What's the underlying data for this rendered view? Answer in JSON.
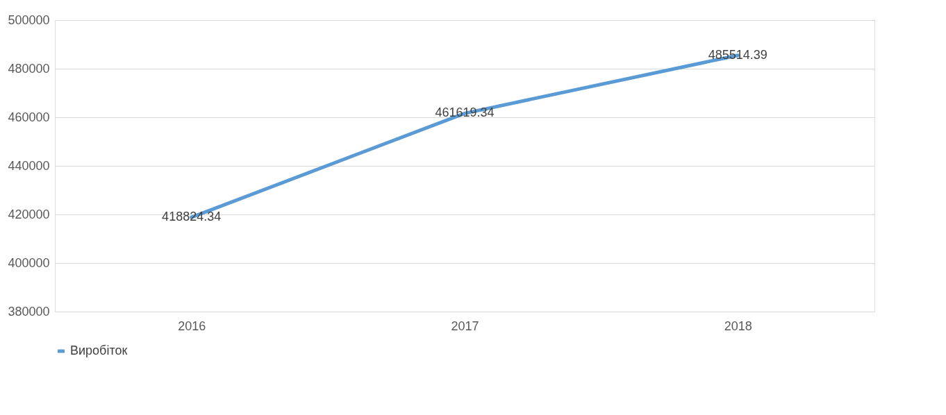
{
  "chart_data": {
    "type": "line",
    "categories": [
      "2016",
      "2017",
      "2018"
    ],
    "series": [
      {
        "name": "Виробіток",
        "color": "#5b9bd5",
        "values": [
          418824.34,
          461619.34,
          485514.39
        ]
      }
    ],
    "ylim": [
      380000,
      500000
    ],
    "yticks": [
      380000,
      400000,
      420000,
      440000,
      460000,
      480000,
      500000
    ],
    "grid": "y",
    "legend": "bottom",
    "data_labels": true,
    "marker": "none",
    "line_style": "solid"
  }
}
